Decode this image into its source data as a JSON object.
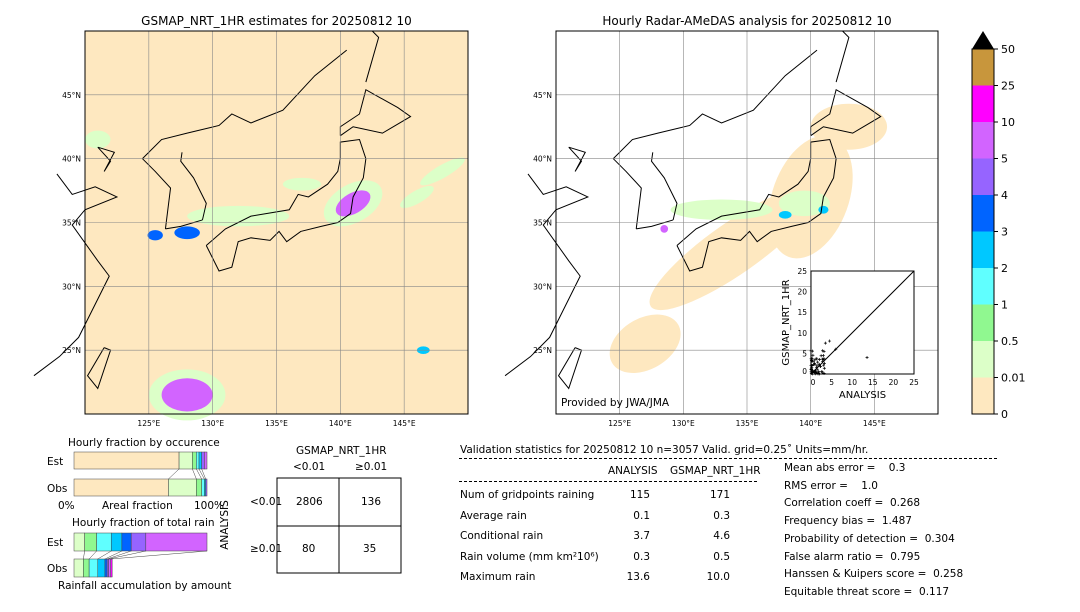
{
  "chart_data": [
    {
      "type": "heatmap",
      "title": "GSMAP_NRT_1HR estimates for 20250812 10",
      "lon_ticks": [
        "125°E",
        "130°E",
        "135°E",
        "140°E",
        "145°E"
      ],
      "lat_ticks": [
        "45°N",
        "40°N",
        "35°N",
        "30°N",
        "25°N"
      ],
      "lon_range": [
        120,
        150
      ],
      "lat_range": [
        20,
        50
      ]
    },
    {
      "type": "heatmap",
      "title": "Hourly Radar-AMeDAS analysis for 20250812 10",
      "lon_ticks": [
        "125°E",
        "130°E",
        "135°E",
        "140°E",
        "145°E"
      ],
      "lat_ticks": [
        "45°N",
        "40°N",
        "35°N",
        "30°N",
        "25°N"
      ],
      "lon_range": [
        120,
        150
      ],
      "lat_range": [
        20,
        50
      ],
      "annotation": "Provided by JWA/JMA"
    },
    {
      "type": "scatter",
      "xlabel": "ANALYSIS",
      "ylabel": "GSMAP_NRT_1HR",
      "xlim": [
        0,
        25
      ],
      "ylim": [
        0,
        25
      ],
      "ticks": [
        "0",
        "5",
        "10",
        "15",
        "20",
        "25"
      ]
    },
    {
      "type": "bar",
      "title": "Hourly fraction by occurence",
      "xlabel": "Areal fraction",
      "xtick_labels": [
        "0%",
        "100%"
      ],
      "categories": [
        "Est",
        "Obs"
      ],
      "est_fractions": [
        0.79,
        0.1,
        0.03,
        0.02,
        0.02,
        0.02,
        0.02
      ],
      "obs_fractions": [
        0.71,
        0.21,
        0.04,
        0.02,
        0.01,
        0.01
      ]
    },
    {
      "type": "bar",
      "title": "Hourly fraction of total rain",
      "xlabel": "Rainfall accumulation by amount",
      "categories": [
        "Est",
        "Obs"
      ],
      "est_fractions": [
        0.08,
        0.09,
        0.11,
        0.08,
        0.07,
        0.11,
        0.46
      ],
      "obs_fractions": [
        0.13,
        0.08,
        0.12,
        0.1,
        0.03,
        0.02,
        0.03,
        0.02
      ]
    }
  ],
  "colorbar": {
    "labels": [
      "0",
      "0.01",
      "0.5",
      "1",
      "2",
      "3",
      "4",
      "5",
      "10",
      "25",
      "50"
    ],
    "colors": [
      "#fee8c0",
      "#dcffc8",
      "#90f890",
      "#60ffff",
      "#00c8ff",
      "#0064ff",
      "#9664ff",
      "#d264ff",
      "#ff00ff",
      "#c8963c"
    ]
  },
  "contingency": {
    "title": "GSMAP_NRT_1HR",
    "cols": [
      "<0.01",
      "≥0.01"
    ],
    "row_label": "ANALYSIS",
    "rows": [
      "<0.01",
      "≥0.01"
    ],
    "cells": [
      [
        "2806",
        "136"
      ],
      [
        "80",
        "35"
      ]
    ]
  },
  "stats": {
    "header": "Validation statistics for 20250812 10  n=3057 Valid. grid=0.25˚ Units=mm/hr.",
    "columns": [
      "ANALYSIS",
      "GSMAP_NRT_1HR"
    ],
    "rows": [
      {
        "label": "Num of gridpoints raining",
        "a": "115",
        "g": "171"
      },
      {
        "label": "Average rain",
        "a": "0.1",
        "g": "0.3"
      },
      {
        "label": "Conditional rain",
        "a": "3.7",
        "g": "4.6"
      },
      {
        "label": "Rain volume (mm km²10⁶)",
        "a": "0.3",
        "g": "0.5"
      },
      {
        "label": "Maximum rain",
        "a": "13.6",
        "g": "10.0"
      }
    ],
    "scores": [
      "Mean abs error =    0.3",
      "RMS error =    1.0",
      "Correlation coeff =  0.268",
      "Frequency bias =  1.487",
      "Probability of detection =  0.304",
      "False alarm ratio =  0.795",
      "Hanssen & Kuipers score =  0.258",
      "Equitable threat score =  0.117"
    ]
  }
}
